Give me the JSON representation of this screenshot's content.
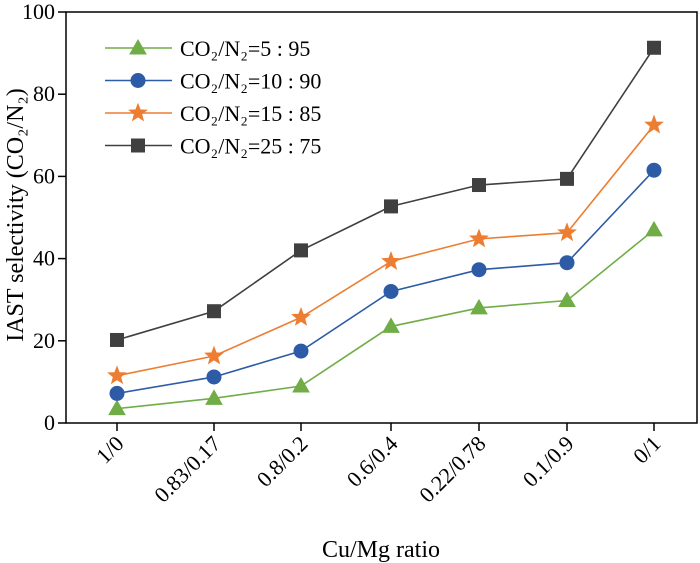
{
  "chart_data": {
    "type": "line",
    "xlabel": "Cu/Mg ratio",
    "ylabel": "IAST selectivity (CO₂/N₂)",
    "categories": [
      "1/0",
      "0.83/0.17",
      "0.8/0.2",
      "0.6/0.4",
      "0.22/0.78",
      "0.1/0.9",
      "0/1"
    ],
    "ylim": [
      0,
      100
    ],
    "yticks": [
      "0",
      "20",
      "40",
      "60",
      "80",
      "100"
    ],
    "grid": false,
    "legend_position": "top-left",
    "series": [
      {
        "name": "CO₂/N₂=5 : 95",
        "marker": "triangle",
        "color": "#70ad47",
        "values": [
          3.5,
          6.0,
          9.0,
          23.5,
          28.0,
          29.8,
          47.0
        ]
      },
      {
        "name": "CO₂/N₂=10 : 90",
        "marker": "circle",
        "color": "#2e5ba6",
        "values": [
          7.2,
          11.2,
          17.5,
          32.0,
          37.3,
          39.0,
          61.5
        ]
      },
      {
        "name": "CO₂/N₂=15 : 85",
        "marker": "star",
        "color": "#ed7d31",
        "values": [
          11.5,
          16.3,
          25.7,
          39.3,
          44.8,
          46.3,
          72.5
        ]
      },
      {
        "name": "CO₂/N₂=25 : 75",
        "marker": "square",
        "color": "#404040",
        "values": [
          20.2,
          27.2,
          42.0,
          52.7,
          57.9,
          59.4,
          91.3
        ]
      }
    ]
  }
}
